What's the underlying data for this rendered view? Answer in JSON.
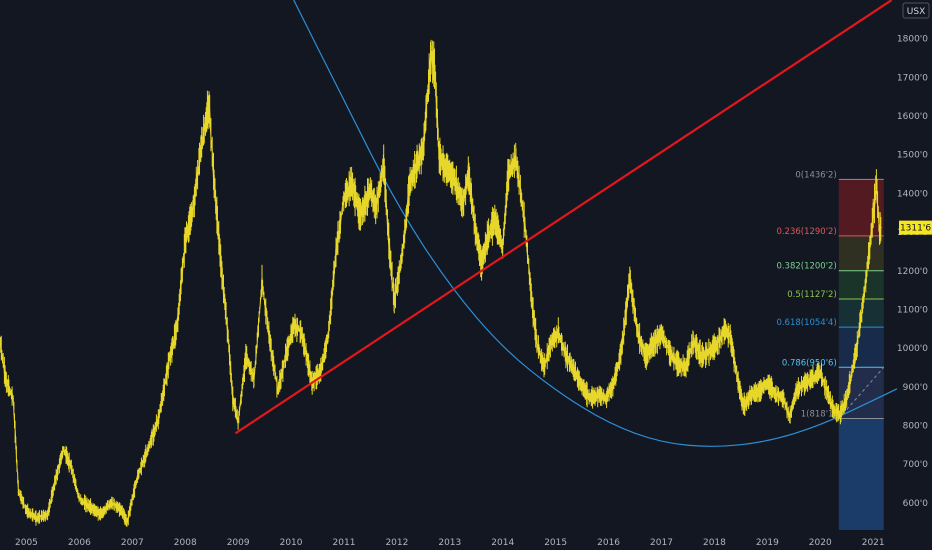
{
  "unit": "USX",
  "colors": {
    "background": "#131722",
    "price": "#e6d72a",
    "trendline": "#e3171b",
    "arc": "#2b8fd6",
    "axis_text": "#b2b5be"
  },
  "chart_data": {
    "type": "line",
    "title": "",
    "xlabel": "",
    "ylabel": "",
    "unit": "USX",
    "xlim": [
      2004.5,
      2021.45
    ],
    "ylim": [
      5300,
      19000
    ],
    "grid": false,
    "x_ticks": [
      {
        "value": 2005,
        "label": "2005"
      },
      {
        "value": 2006,
        "label": "2006"
      },
      {
        "value": 2007,
        "label": "2007"
      },
      {
        "value": 2008,
        "label": "2008"
      },
      {
        "value": 2009,
        "label": "2009"
      },
      {
        "value": 2010,
        "label": "2010"
      },
      {
        "value": 2011,
        "label": "2011"
      },
      {
        "value": 2012,
        "label": "2012"
      },
      {
        "value": 2013,
        "label": "2013"
      },
      {
        "value": 2014,
        "label": "2014"
      },
      {
        "value": 2015,
        "label": "2015"
      },
      {
        "value": 2016,
        "label": "2016"
      },
      {
        "value": 2017,
        "label": "2017"
      },
      {
        "value": 2018,
        "label": "2018"
      },
      {
        "value": 2019,
        "label": "2019"
      },
      {
        "value": 2020,
        "label": "2020"
      },
      {
        "value": 2021,
        "label": "2021"
      }
    ],
    "y_ticks": [
      {
        "value": 6000,
        "label": "600'0"
      },
      {
        "value": 7000,
        "label": "700'0"
      },
      {
        "value": 8000,
        "label": "800'0"
      },
      {
        "value": 9000,
        "label": "900'0"
      },
      {
        "value": 10000,
        "label": "1000'0"
      },
      {
        "value": 11000,
        "label": "1100'0"
      },
      {
        "value": 12000,
        "label": "1200'0"
      },
      {
        "value": 13000,
        "label": "1300'0"
      },
      {
        "value": 14000,
        "label": "1400'0"
      },
      {
        "value": 15000,
        "label": "1500'0"
      },
      {
        "value": 16000,
        "label": "1600'0"
      },
      {
        "value": 17000,
        "label": "1700'0"
      },
      {
        "value": 18000,
        "label": "1800'0"
      }
    ],
    "series": [
      {
        "color": "#e6d72a",
        "points": [
          [
            2004.5,
            10200
          ],
          [
            2004.62,
            9100
          ],
          [
            2004.75,
            8700
          ],
          [
            2004.85,
            6300
          ],
          [
            2005.0,
            5800
          ],
          [
            2005.2,
            5600
          ],
          [
            2005.4,
            5700
          ],
          [
            2005.55,
            6600
          ],
          [
            2005.7,
            7400
          ],
          [
            2005.85,
            6900
          ],
          [
            2006.0,
            6100
          ],
          [
            2006.2,
            5900
          ],
          [
            2006.4,
            5700
          ],
          [
            2006.6,
            6000
          ],
          [
            2006.8,
            5800
          ],
          [
            2006.9,
            5500
          ],
          [
            2007.1,
            6700
          ],
          [
            2007.3,
            7400
          ],
          [
            2007.5,
            8200
          ],
          [
            2007.7,
            9700
          ],
          [
            2007.85,
            10600
          ],
          [
            2008.0,
            12800
          ],
          [
            2008.15,
            13600
          ],
          [
            2008.3,
            15200
          ],
          [
            2008.45,
            16300
          ],
          [
            2008.55,
            14200
          ],
          [
            2008.7,
            11800
          ],
          [
            2008.8,
            10500
          ],
          [
            2008.9,
            8700
          ],
          [
            2009.0,
            8100
          ],
          [
            2009.15,
            9800
          ],
          [
            2009.3,
            9200
          ],
          [
            2009.45,
            11700
          ],
          [
            2009.6,
            10200
          ],
          [
            2009.75,
            8900
          ],
          [
            2009.9,
            9800
          ],
          [
            2010.05,
            10600
          ],
          [
            2010.2,
            10400
          ],
          [
            2010.4,
            9100
          ],
          [
            2010.55,
            9400
          ],
          [
            2010.7,
            10300
          ],
          [
            2010.85,
            12500
          ],
          [
            2011.0,
            13900
          ],
          [
            2011.15,
            14300
          ],
          [
            2011.3,
            13400
          ],
          [
            2011.5,
            14100
          ],
          [
            2011.6,
            13600
          ],
          [
            2011.75,
            14700
          ],
          [
            2011.85,
            12700
          ],
          [
            2011.95,
            11200
          ],
          [
            2012.1,
            12400
          ],
          [
            2012.25,
            14300
          ],
          [
            2012.4,
            14800
          ],
          [
            2012.5,
            15200
          ],
          [
            2012.55,
            16100
          ],
          [
            2012.65,
            17600
          ],
          [
            2012.72,
            17100
          ],
          [
            2012.8,
            14900
          ],
          [
            2012.95,
            14600
          ],
          [
            2013.1,
            14300
          ],
          [
            2013.25,
            13700
          ],
          [
            2013.35,
            14500
          ],
          [
            2013.5,
            12900
          ],
          [
            2013.6,
            12200
          ],
          [
            2013.72,
            12900
          ],
          [
            2013.85,
            13300
          ],
          [
            2014.0,
            12600
          ],
          [
            2014.1,
            14500
          ],
          [
            2014.25,
            14900
          ],
          [
            2014.42,
            13200
          ],
          [
            2014.55,
            11200
          ],
          [
            2014.65,
            10100
          ],
          [
            2014.78,
            9500
          ],
          [
            2014.9,
            10100
          ],
          [
            2015.05,
            10400
          ],
          [
            2015.2,
            9800
          ],
          [
            2015.35,
            9400
          ],
          [
            2015.5,
            9000
          ],
          [
            2015.65,
            8700
          ],
          [
            2015.8,
            8800
          ],
          [
            2015.95,
            8700
          ],
          [
            2016.1,
            9100
          ],
          [
            2016.25,
            10000
          ],
          [
            2016.4,
            11800
          ],
          [
            2016.55,
            10400
          ],
          [
            2016.7,
            9800
          ],
          [
            2016.85,
            10100
          ],
          [
            2017.0,
            10400
          ],
          [
            2017.15,
            9900
          ],
          [
            2017.3,
            9600
          ],
          [
            2017.45,
            9500
          ],
          [
            2017.6,
            10200
          ],
          [
            2017.75,
            9800
          ],
          [
            2017.9,
            9900
          ],
          [
            2018.05,
            10100
          ],
          [
            2018.2,
            10500
          ],
          [
            2018.3,
            10300
          ],
          [
            2018.45,
            9100
          ],
          [
            2018.55,
            8500
          ],
          [
            2018.7,
            8800
          ],
          [
            2018.85,
            8900
          ],
          [
            2019.0,
            9100
          ],
          [
            2019.15,
            8800
          ],
          [
            2019.3,
            8700
          ],
          [
            2019.42,
            8200
          ],
          [
            2019.55,
            8900
          ],
          [
            2019.7,
            9100
          ],
          [
            2019.85,
            9200
          ],
          [
            2020.0,
            9400
          ],
          [
            2020.12,
            8900
          ],
          [
            2020.25,
            8400
          ],
          [
            2020.38,
            8300
          ],
          [
            2020.5,
            8700
          ],
          [
            2020.6,
            9400
          ],
          [
            2020.7,
            10100
          ],
          [
            2020.8,
            11100
          ],
          [
            2020.9,
            12200
          ],
          [
            2021.0,
            13400
          ],
          [
            2021.06,
            14300
          ],
          [
            2021.12,
            13000
          ],
          [
            2021.15,
            13116
          ]
        ]
      }
    ],
    "trendline": {
      "color": "#e3171b",
      "points": [
        [
          2008.95,
          7800
        ],
        [
          2021.35,
          19000
        ]
      ]
    },
    "arc": {
      "color": "#2b8fd6",
      "points": [
        [
          2010.05,
          19000
        ],
        [
          2011.0,
          16400
        ],
        [
          2012.0,
          13700
        ],
        [
          2013.0,
          11600
        ],
        [
          2014.0,
          10000
        ],
        [
          2015.0,
          8900
        ],
        [
          2016.0,
          8050
        ],
        [
          2017.0,
          7550
        ],
        [
          2018.0,
          7430
        ],
        [
          2019.0,
          7580
        ],
        [
          2020.0,
          8000
        ],
        [
          2021.0,
          8650
        ],
        [
          2021.45,
          8950
        ]
      ]
    },
    "fibonacci": {
      "x_start": 2020.35,
      "x_end": 2021.2,
      "extend_to": 5300,
      "levels": [
        {
          "ratio": "0",
          "value": 14362,
          "label": "0(1436'2)",
          "color": "#8c8e96",
          "fill": "#6b1c23"
        },
        {
          "ratio": "0.236",
          "value": 12902,
          "label": "0.236(1290'2)",
          "color": "#e0545a",
          "fill": "#3a3a22"
        },
        {
          "ratio": "0.382",
          "value": 12002,
          "label": "0.382(1200'2)",
          "color": "#7fcf8f",
          "fill": "#1e3f2c"
        },
        {
          "ratio": "0.5",
          "value": 11272,
          "label": "0.5(1127'2)",
          "color": "#8bc34a",
          "fill": "#1a3a3e"
        },
        {
          "ratio": "0.618",
          "value": 10544,
          "label": "0.618(1054'4)",
          "color": "#2b8fd6",
          "fill": "#1c3358"
        },
        {
          "ratio": "0.786",
          "value": 9506,
          "label": "0.786(950'6)",
          "color": "#4fc3f7",
          "fill": "#28365a"
        },
        {
          "ratio": "1",
          "value": 8181,
          "label": "1(818'1)",
          "color": "#8c8e96",
          "fill": "#1f4a82"
        }
      ]
    },
    "last_price": {
      "value": 13116,
      "label": "1311'6",
      "color": "#f5e61e"
    }
  }
}
